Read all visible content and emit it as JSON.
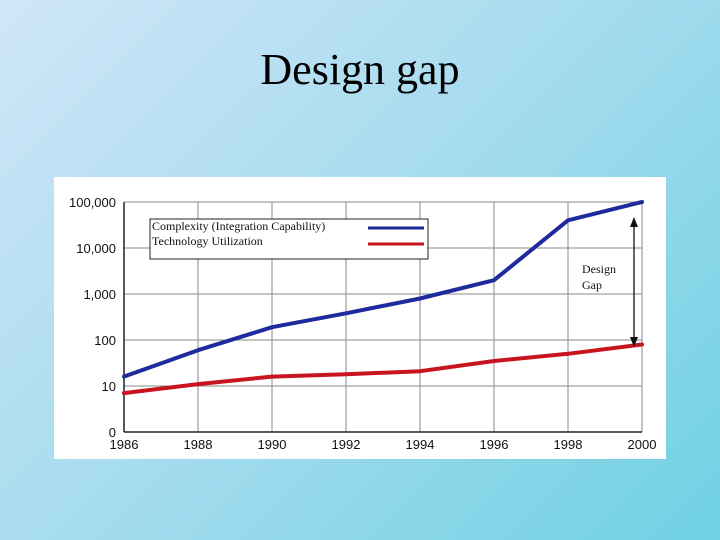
{
  "slide": {
    "title": "Design gap"
  },
  "chart_data": {
    "type": "line",
    "title": "",
    "xlabel": "",
    "ylabel": "",
    "yscale": "log",
    "x_ticks": [
      "1986",
      "1988",
      "1990",
      "1992",
      "1994",
      "1996",
      "1998",
      "2000"
    ],
    "y_ticks": [
      "0",
      "10",
      "100",
      "1,000",
      "10,000",
      "100,000"
    ],
    "grid": true,
    "legend": "top-left",
    "series": [
      {
        "name": "Complexity (Integration Capability)",
        "color": "#1f2a9c",
        "x": [
          1986,
          1988,
          1990,
          1992,
          1994,
          1996,
          1998,
          2000
        ],
        "y": [
          16,
          60,
          190,
          380,
          800,
          2000,
          40000,
          100000
        ]
      },
      {
        "name": "Technology Utilization",
        "color": "#c8141e",
        "x": [
          1986,
          1988,
          1990,
          1992,
          1994,
          1996,
          1998,
          2000
        ],
        "y": [
          7,
          11,
          16,
          18,
          21,
          35,
          50,
          80
        ]
      }
    ],
    "annotations": [
      {
        "text_line1": "Design",
        "text_line2": "Gap"
      }
    ]
  }
}
